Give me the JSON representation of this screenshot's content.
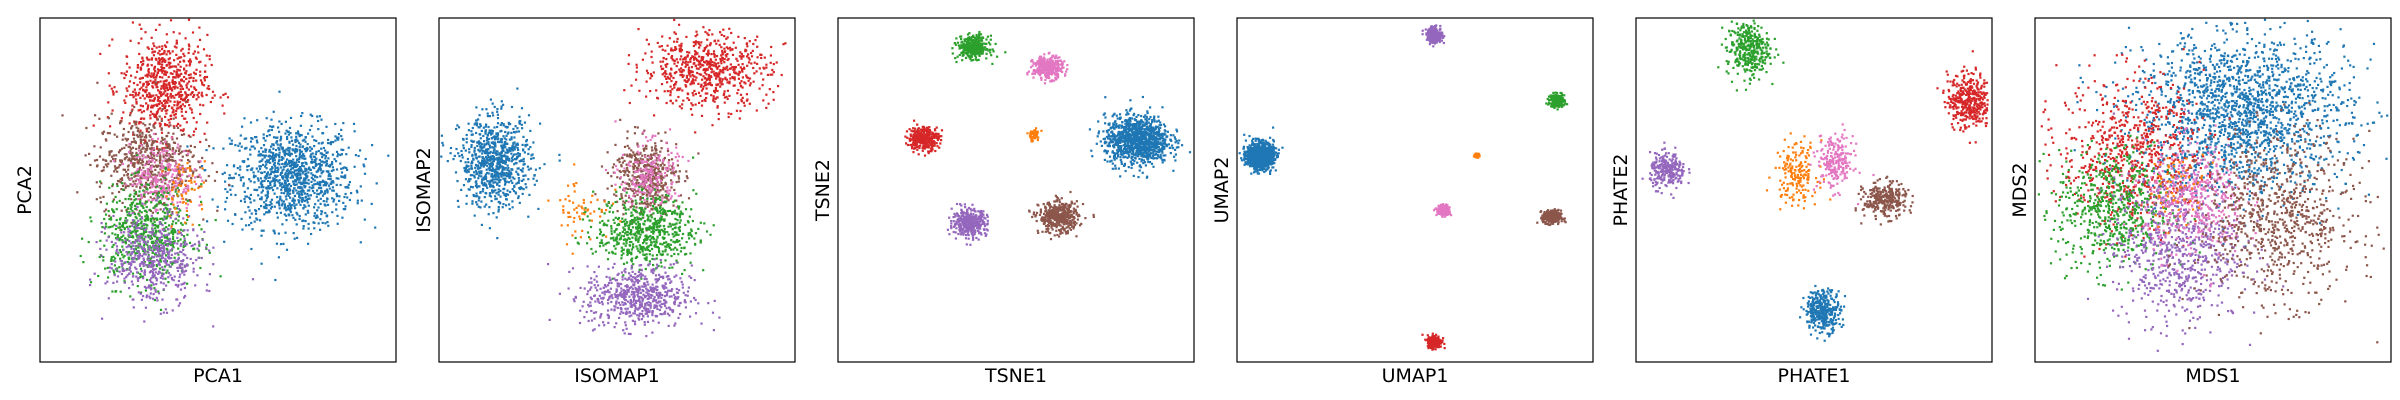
{
  "chart_data": [
    {
      "type": "scatter",
      "xlabel": "PCA1",
      "ylabel": "PCA2",
      "xlim": [
        -10,
        10
      ],
      "ylim": [
        -10,
        10
      ],
      "grid": false,
      "ticks": false,
      "clusters": [
        {
          "color": "#1f77b4",
          "cx": 4.2,
          "cy": 0.8,
          "sx": 1.7,
          "sy": 1.5,
          "n": 1100
        },
        {
          "color": "#d62728",
          "cx": -3.0,
          "cy": 6.0,
          "sx": 1.2,
          "sy": 1.5,
          "n": 650
        },
        {
          "color": "#8c564b",
          "cx": -4.0,
          "cy": 1.6,
          "sx": 1.4,
          "sy": 1.3,
          "n": 600
        },
        {
          "color": "#e377c2",
          "cx": -3.2,
          "cy": 0.8,
          "sx": 0.9,
          "sy": 1.0,
          "n": 250
        },
        {
          "color": "#2ca02c",
          "cx": -4.0,
          "cy": -2.6,
          "sx": 1.3,
          "sy": 1.4,
          "n": 600
        },
        {
          "color": "#9467bd",
          "cx": -3.6,
          "cy": -4.0,
          "sx": 1.3,
          "sy": 1.3,
          "n": 500
        },
        {
          "color": "#ff7f0e",
          "cx": -1.8,
          "cy": 0.0,
          "sx": 0.6,
          "sy": 0.9,
          "n": 60
        }
      ]
    },
    {
      "type": "scatter",
      "xlabel": "ISOMAP1",
      "ylabel": "ISOMAP2",
      "xlim": [
        -10,
        10
      ],
      "ylim": [
        -10,
        10
      ],
      "grid": false,
      "ticks": false,
      "clusters": [
        {
          "color": "#d62728",
          "cx": 5.0,
          "cy": 7.0,
          "sx": 1.8,
          "sy": 1.1,
          "n": 650
        },
        {
          "color": "#1f77b4",
          "cx": -6.8,
          "cy": 1.6,
          "sx": 1.0,
          "sy": 1.3,
          "n": 800
        },
        {
          "color": "#8c564b",
          "cx": 1.6,
          "cy": 0.8,
          "sx": 0.9,
          "sy": 1.1,
          "n": 450
        },
        {
          "color": "#e377c2",
          "cx": 1.8,
          "cy": 0.8,
          "sx": 0.8,
          "sy": 1.0,
          "n": 200
        },
        {
          "color": "#2ca02c",
          "cx": 1.6,
          "cy": -2.4,
          "sx": 1.4,
          "sy": 1.0,
          "n": 600
        },
        {
          "color": "#9467bd",
          "cx": 1.2,
          "cy": -6.2,
          "sx": 1.5,
          "sy": 0.9,
          "n": 600
        },
        {
          "color": "#ff7f0e",
          "cx": -2.0,
          "cy": -1.0,
          "sx": 0.8,
          "sy": 1.0,
          "n": 60
        }
      ]
    },
    {
      "type": "scatter",
      "xlabel": "TSNE1",
      "ylabel": "TSNE2",
      "xlim": [
        -10,
        10
      ],
      "ylim": [
        -10,
        10
      ],
      "grid": false,
      "ticks": false,
      "clusters": [
        {
          "color": "#1f77b4",
          "cx": 6.8,
          "cy": 2.9,
          "sx": 0.9,
          "sy": 0.7,
          "n": 1100
        },
        {
          "color": "#2ca02c",
          "cx": -2.4,
          "cy": 8.3,
          "sx": 0.42,
          "sy": 0.32,
          "n": 350
        },
        {
          "color": "#e377c2",
          "cx": 1.8,
          "cy": 7.1,
          "sx": 0.42,
          "sy": 0.32,
          "n": 350
        },
        {
          "color": "#d62728",
          "cx": -5.2,
          "cy": 3.0,
          "sx": 0.42,
          "sy": 0.34,
          "n": 350
        },
        {
          "color": "#ff7f0e",
          "cx": 1.0,
          "cy": 3.2,
          "sx": 0.18,
          "sy": 0.18,
          "n": 50
        },
        {
          "color": "#9467bd",
          "cx": -2.6,
          "cy": -1.9,
          "sx": 0.48,
          "sy": 0.38,
          "n": 400
        },
        {
          "color": "#8c564b",
          "cx": 2.4,
          "cy": -1.6,
          "sx": 0.55,
          "sy": 0.45,
          "n": 450
        }
      ]
    },
    {
      "type": "scatter",
      "xlabel": "UMAP1",
      "ylabel": "UMAP2",
      "xlim": [
        -10,
        10
      ],
      "ylim": [
        -10,
        10
      ],
      "grid": false,
      "ticks": false,
      "clusters": [
        {
          "color": "#9467bd",
          "cx": 1.1,
          "cy": 9.0,
          "sx": 0.22,
          "sy": 0.22,
          "n": 250
        },
        {
          "color": "#2ca02c",
          "cx": 8.0,
          "cy": 5.2,
          "sx": 0.2,
          "sy": 0.18,
          "n": 250
        },
        {
          "color": "#1f77b4",
          "cx": -8.7,
          "cy": 2.0,
          "sx": 0.38,
          "sy": 0.38,
          "n": 900
        },
        {
          "color": "#ff7f0e",
          "cx": 3.5,
          "cy": 2.0,
          "sx": 0.07,
          "sy": 0.07,
          "n": 40
        },
        {
          "color": "#e377c2",
          "cx": 1.6,
          "cy": -1.2,
          "sx": 0.18,
          "sy": 0.15,
          "n": 200
        },
        {
          "color": "#8c564b",
          "cx": 7.7,
          "cy": -1.6,
          "sx": 0.25,
          "sy": 0.2,
          "n": 300
        },
        {
          "color": "#d62728",
          "cx": 1.1,
          "cy": -8.8,
          "sx": 0.2,
          "sy": 0.18,
          "n": 250
        }
      ]
    },
    {
      "type": "scatter",
      "xlabel": "PHATE1",
      "ylabel": "PHATE2",
      "xlim": [
        -10,
        10
      ],
      "ylim": [
        -10,
        10
      ],
      "grid": false,
      "ticks": false,
      "clusters": [
        {
          "color": "#2ca02c",
          "cx": -3.7,
          "cy": 8.2,
          "sx": 0.6,
          "sy": 0.8,
          "n": 350
        },
        {
          "color": "#d62728",
          "cx": 8.7,
          "cy": 5.2,
          "sx": 0.6,
          "sy": 0.8,
          "n": 400
        },
        {
          "color": "#9467bd",
          "cx": -8.2,
          "cy": 1.1,
          "sx": 0.5,
          "sy": 0.5,
          "n": 250
        },
        {
          "color": "#ff7f0e",
          "cx": -1.0,
          "cy": 1.0,
          "sx": 0.6,
          "sy": 0.9,
          "n": 180
        },
        {
          "color": "#e377c2",
          "cx": 1.2,
          "cy": 1.6,
          "sx": 0.5,
          "sy": 0.8,
          "n": 220
        },
        {
          "color": "#8c564b",
          "cx": 4.0,
          "cy": -0.6,
          "sx": 0.6,
          "sy": 0.5,
          "n": 300
        },
        {
          "color": "#1f77b4",
          "cx": 0.5,
          "cy": -7.0,
          "sx": 0.5,
          "sy": 0.6,
          "n": 350
        }
      ]
    },
    {
      "type": "scatter",
      "xlabel": "MDS1",
      "ylabel": "MDS2",
      "xlim": [
        -10,
        10
      ],
      "ylim": [
        -10,
        10
      ],
      "grid": false,
      "ticks": false,
      "clusters": [
        {
          "color": "#1f77b4",
          "cx": 1.6,
          "cy": 4.5,
          "sx": 3.0,
          "sy": 2.3,
          "n": 1800
        },
        {
          "color": "#d62728",
          "cx": -4.6,
          "cy": 2.2,
          "sx": 2.0,
          "sy": 2.2,
          "n": 700
        },
        {
          "color": "#2ca02c",
          "cx": -5.6,
          "cy": -1.2,
          "sx": 1.6,
          "sy": 1.8,
          "n": 600
        },
        {
          "color": "#9467bd",
          "cx": -2.0,
          "cy": -3.4,
          "sx": 1.8,
          "sy": 2.2,
          "n": 700
        },
        {
          "color": "#e377c2",
          "cx": -1.0,
          "cy": -0.6,
          "sx": 1.4,
          "sy": 1.6,
          "n": 400
        },
        {
          "color": "#8c564b",
          "cx": 3.6,
          "cy": -1.6,
          "sx": 2.2,
          "sy": 2.4,
          "n": 800
        },
        {
          "color": "#ff7f0e",
          "cx": -2.0,
          "cy": 0.2,
          "sx": 0.8,
          "sy": 1.0,
          "n": 60
        }
      ]
    }
  ]
}
